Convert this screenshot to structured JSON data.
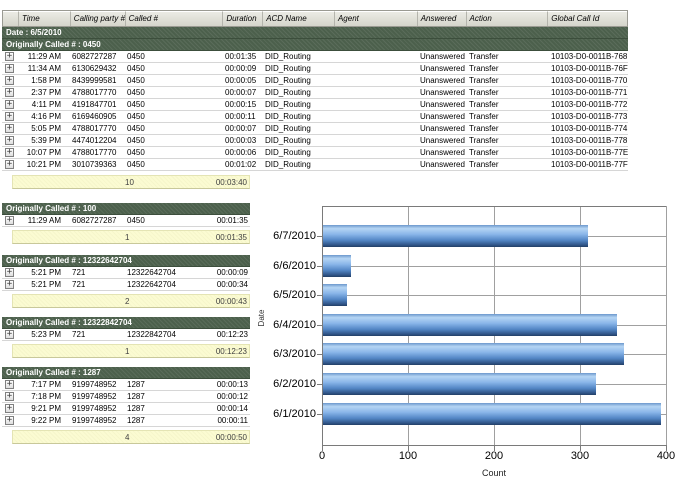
{
  "table": {
    "columns": [
      "Time",
      "Calling party #",
      "Called #",
      "Duration",
      "ACD Name",
      "Agent",
      "Answered",
      "Action",
      "Global Call Id"
    ],
    "date_label": "Date : 6/5/2010",
    "expander_glyph": "+",
    "colors": {
      "group_header_bg": "#4c604c",
      "summary_bg": "#fbfbd2",
      "header_bg": "#dcdcd4"
    },
    "groups": [
      {
        "header": "Originally Called # : 0450",
        "wide": true,
        "rows": [
          {
            "time": "11:29 AM",
            "calling": "6082727287",
            "called": "0450",
            "duration": "00:01:35",
            "acd": "DID_Routing",
            "agent": "",
            "answered": "Unanswered",
            "action": "Transfer",
            "global_id": "10103-D0-0011B-768"
          },
          {
            "time": "11:34 AM",
            "calling": "6130629432",
            "called": "0450",
            "duration": "00:00:09",
            "acd": "DID_Routing",
            "agent": "",
            "answered": "Unanswered",
            "action": "Transfer",
            "global_id": "10103-D0-0011B-76F"
          },
          {
            "time": "1:58 PM",
            "calling": "8439999581",
            "called": "0450",
            "duration": "00:00:05",
            "acd": "DID_Routing",
            "agent": "",
            "answered": "Unanswered",
            "action": "Transfer",
            "global_id": "10103-D0-0011B-770"
          },
          {
            "time": "2:37 PM",
            "calling": "4788017770",
            "called": "0450",
            "duration": "00:00:07",
            "acd": "DID_Routing",
            "agent": "",
            "answered": "Unanswered",
            "action": "Transfer",
            "global_id": "10103-D0-0011B-771"
          },
          {
            "time": "4:11 PM",
            "calling": "4191847701",
            "called": "0450",
            "duration": "00:00:15",
            "acd": "DID_Routing",
            "agent": "",
            "answered": "Unanswered",
            "action": "Transfer",
            "global_id": "10103-D0-0011B-772"
          },
          {
            "time": "4:16 PM",
            "calling": "6169460905",
            "called": "0450",
            "duration": "00:00:11",
            "acd": "DID_Routing",
            "agent": "",
            "answered": "Unanswered",
            "action": "Transfer",
            "global_id": "10103-D0-0011B-773"
          },
          {
            "time": "5:05 PM",
            "calling": "4788017770",
            "called": "0450",
            "duration": "00:00:07",
            "acd": "DID_Routing",
            "agent": "",
            "answered": "Unanswered",
            "action": "Transfer",
            "global_id": "10103-D0-0011B-774"
          },
          {
            "time": "5:39 PM",
            "calling": "4474012204",
            "called": "0450",
            "duration": "00:00:03",
            "acd": "DID_Routing",
            "agent": "",
            "answered": "Unanswered",
            "action": "Transfer",
            "global_id": "10103-D0-0011B-778"
          },
          {
            "time": "10:07 PM",
            "calling": "4788017770",
            "called": "0450",
            "duration": "00:00:06",
            "acd": "DID_Routing",
            "agent": "",
            "answered": "Unanswered",
            "action": "Transfer",
            "global_id": "10103-D0-0011B-77E"
          },
          {
            "time": "10:21 PM",
            "calling": "3010739363",
            "called": "0450",
            "duration": "00:01:02",
            "acd": "DID_Routing",
            "agent": "",
            "answered": "Unanswered",
            "action": "Transfer",
            "global_id": "10103-D0-0011B-77F"
          }
        ],
        "summary": {
          "count": "10",
          "duration": "00:03:40"
        }
      },
      {
        "header": "Originally Called # : 100",
        "wide": false,
        "rows": [
          {
            "time": "11:29 AM",
            "calling": "6082727287",
            "called": "0450",
            "duration": "00:01:35"
          }
        ],
        "summary": {
          "count": "1",
          "duration": "00:01:35"
        }
      },
      {
        "header": "Originally Called # : 12322642704",
        "wide": false,
        "rows": [
          {
            "time": "5:21 PM",
            "calling": "721",
            "called": "12322642704",
            "duration": "00:00:09"
          },
          {
            "time": "5:21 PM",
            "calling": "721",
            "called": "12322642704",
            "duration": "00:00:34"
          }
        ],
        "summary": {
          "count": "2",
          "duration": "00:00:43"
        }
      },
      {
        "header": "Originally Called # : 12322842704",
        "wide": false,
        "rows": [
          {
            "time": "5:23 PM",
            "calling": "721",
            "called": "12322842704",
            "duration": "00:12:23"
          }
        ],
        "summary": {
          "count": "1",
          "duration": "00:12:23"
        }
      },
      {
        "header": "Originally Called # : 1287",
        "wide": false,
        "rows": [
          {
            "time": "7:17 PM",
            "calling": "9199748952",
            "called": "1287",
            "duration": "00:00:13"
          },
          {
            "time": "7:18 PM",
            "calling": "9199748952",
            "called": "1287",
            "duration": "00:00:12"
          },
          {
            "time": "9:21 PM",
            "calling": "9199748952",
            "called": "1287",
            "duration": "00:00:14"
          },
          {
            "time": "9:22 PM",
            "calling": "9199748952",
            "called": "1287",
            "duration": "00:00:11"
          }
        ],
        "summary": {
          "count": "4",
          "duration": "00:00:50"
        }
      }
    ]
  },
  "chart_data": {
    "type": "bar",
    "orientation": "horizontal",
    "categories": [
      "6/7/2010",
      "6/6/2010",
      "6/5/2010",
      "6/4/2010",
      "6/3/2010",
      "6/2/2010",
      "6/1/2010"
    ],
    "values": [
      308,
      33,
      28,
      342,
      350,
      318,
      393
    ],
    "title": "",
    "xlabel": "Count",
    "ylabel": "Date",
    "xlim": [
      0,
      400
    ],
    "xticks": [
      0,
      100,
      200,
      300,
      400
    ],
    "grid": true,
    "bar_color": "#5b8fd6",
    "legend": null
  }
}
